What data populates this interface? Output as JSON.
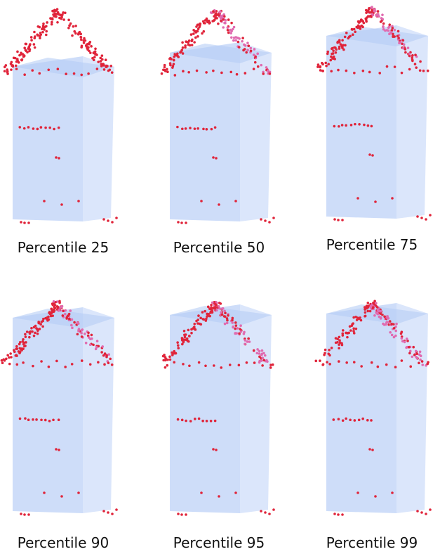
{
  "panels": [
    {
      "label": "Percentile 25"
    },
    {
      "label": "Percentile 50"
    },
    {
      "label": "Percentile 75"
    },
    {
      "label": "Percentile 90"
    },
    {
      "label": "Percentile 95"
    },
    {
      "label": "Percentile 99"
    }
  ]
}
